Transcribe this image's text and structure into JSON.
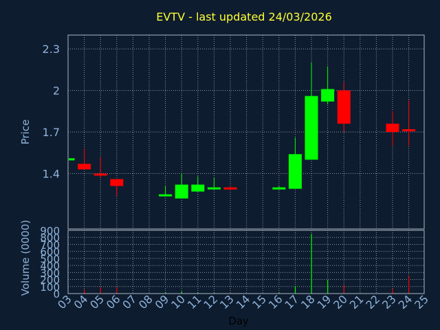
{
  "chart_data": {
    "type": "candlestick",
    "title": "EVTV - last updated 24/03/2026",
    "xlabel": "Day",
    "x_ticks": [
      "03",
      "04",
      "05",
      "06",
      "07",
      "08",
      "09",
      "10",
      "11",
      "12",
      "13",
      "14",
      "15",
      "16",
      "17",
      "18",
      "19",
      "20",
      "21",
      "22",
      "23",
      "24",
      "25"
    ],
    "grid": true,
    "colors": {
      "background": "#0e1c2f",
      "frame": "#a9b7c6",
      "grid": "#8e9aa8",
      "text": "#8fb3d9",
      "title": "#ffff33",
      "up": "#00ff00",
      "down": "#ff0000"
    },
    "price": {
      "ylabel": "Price",
      "ylim": [
        1.0,
        2.4
      ],
      "y_ticks": [
        1.4,
        1.7,
        2.0,
        2.3
      ],
      "y_tick_labels": [
        "1.4",
        "1.7",
        "2",
        "2.3"
      ],
      "candles": [
        {
          "day": "03",
          "open": 1.5,
          "close": 1.51,
          "high": 1.51,
          "low": 1.5
        },
        {
          "day": "04",
          "open": 1.47,
          "close": 1.43,
          "high": 1.58,
          "low": 1.43
        },
        {
          "day": "05",
          "open": 1.4,
          "close": 1.39,
          "high": 1.52,
          "low": 1.37
        },
        {
          "day": "06",
          "open": 1.36,
          "close": 1.31,
          "high": 1.36,
          "low": 1.24
        },
        {
          "day": "09",
          "open": 1.24,
          "close": 1.25,
          "high": 1.31,
          "low": 1.24
        },
        {
          "day": "10",
          "open": 1.22,
          "close": 1.32,
          "high": 1.4,
          "low": 1.22
        },
        {
          "day": "11",
          "open": 1.27,
          "close": 1.32,
          "high": 1.38,
          "low": 1.27
        },
        {
          "day": "12",
          "open": 1.29,
          "close": 1.3,
          "high": 1.37,
          "low": 1.29
        },
        {
          "day": "13",
          "open": 1.3,
          "close": 1.29,
          "high": 1.31,
          "low": 1.28
        },
        {
          "day": "16",
          "open": 1.29,
          "close": 1.3,
          "high": 1.31,
          "low": 1.29
        },
        {
          "day": "17",
          "open": 1.29,
          "close": 1.54,
          "high": 1.66,
          "low": 1.29
        },
        {
          "day": "18",
          "open": 1.5,
          "close": 1.96,
          "high": 2.2,
          "low": 1.5
        },
        {
          "day": "19",
          "open": 1.92,
          "close": 2.01,
          "high": 2.17,
          "low": 1.9
        },
        {
          "day": "20",
          "open": 2.0,
          "close": 1.76,
          "high": 2.06,
          "low": 1.7
        },
        {
          "day": "23",
          "open": 1.76,
          "close": 1.7,
          "high": 1.85,
          "low": 1.6
        },
        {
          "day": "24",
          "open": 1.72,
          "close": 1.71,
          "high": 1.93,
          "low": 1.6
        }
      ]
    },
    "volume": {
      "ylabel": "Volume (0000)",
      "ylim": [
        0,
        900
      ],
      "y_ticks": [
        0,
        100,
        200,
        300,
        400,
        500,
        600,
        700,
        800,
        900
      ],
      "y_tick_labels": [
        "0",
        "100",
        "200",
        "300",
        "400",
        "500",
        "600",
        "700",
        "800",
        "900"
      ],
      "bars": [
        {
          "day": "03",
          "value": 0,
          "dir": "up"
        },
        {
          "day": "04",
          "value": 60,
          "dir": "down"
        },
        {
          "day": "05",
          "value": 90,
          "dir": "down"
        },
        {
          "day": "06",
          "value": 90,
          "dir": "down"
        },
        {
          "day": "09",
          "value": 20,
          "dir": "up"
        },
        {
          "day": "10",
          "value": 30,
          "dir": "up"
        },
        {
          "day": "11",
          "value": 20,
          "dir": "up"
        },
        {
          "day": "12",
          "value": 15,
          "dir": "up"
        },
        {
          "day": "13",
          "value": 10,
          "dir": "down"
        },
        {
          "day": "16",
          "value": 15,
          "dir": "up"
        },
        {
          "day": "17",
          "value": 110,
          "dir": "up"
        },
        {
          "day": "18",
          "value": 850,
          "dir": "up"
        },
        {
          "day": "19",
          "value": 190,
          "dir": "up"
        },
        {
          "day": "20",
          "value": 120,
          "dir": "down"
        },
        {
          "day": "23",
          "value": 70,
          "dir": "down"
        },
        {
          "day": "24",
          "value": 250,
          "dir": "down"
        }
      ]
    }
  }
}
